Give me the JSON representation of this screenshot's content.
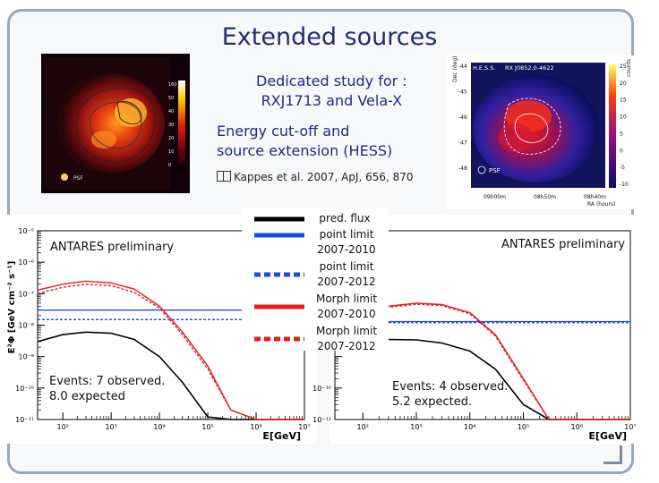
{
  "slide": {
    "title": "Extended sources",
    "study_line1": "Dedicated study for :",
    "study_line2": "RXJ1713 and Vela-X",
    "energy_line1": "Energy cut-off and",
    "energy_line2": "source extension  (HESS)",
    "reference": "Kappes et al. 2007, ApJ, 656, 870"
  },
  "left_map": {
    "colorbar_ticks": [
      "160",
      "50",
      "40",
      "30",
      "20",
      "10",
      "0"
    ],
    "psf_label": "PSF"
  },
  "right_map": {
    "header_left": "H.E.S.S.",
    "header_right": "RX J0852.0-4622",
    "y_label": "Dec (deg)",
    "y_ticks": [
      "-44",
      "-45",
      "-46",
      "-47",
      "-48"
    ],
    "x_ticks": [
      "09h00m",
      "08h50m",
      "08h40m"
    ],
    "x_label": "RA (hours)",
    "colorbar_label": "counts",
    "colorbar_ticks": [
      "25",
      "20",
      "15",
      "10",
      "5",
      "0",
      "-5",
      "-10"
    ],
    "psf_label": "PSF"
  },
  "legend": {
    "items": [
      {
        "label": "pred. flux",
        "color": "#000000",
        "style": "solid"
      },
      {
        "label": "point limit 2007-2010",
        "color": "#1f4fd8",
        "style": "solid"
      },
      {
        "label": "point limit 2007-2012",
        "color": "#1f4fd8",
        "style": "dotted"
      },
      {
        "label": "Morph limit 2007-2010",
        "color": "#e02020",
        "style": "solid"
      },
      {
        "label": "Morph limit 2007-2012",
        "color": "#e02020",
        "style": "dotted"
      }
    ]
  },
  "left_plot": {
    "preliminary": "ANTARES preliminary",
    "events_line1": "Events: 7 observed.",
    "events_line2": "8.0 expected"
  },
  "right_plot": {
    "preliminary": "ANTARES preliminary",
    "events_line1": "Events: 4 observed.",
    "events_line2": "5.2 expected."
  },
  "chart_data": [
    {
      "type": "line",
      "panel": "left",
      "ylabel": "E²Φ [GeV cm⁻² s⁻¹]",
      "xlabel": "E[GeV]",
      "xscale": "log",
      "yscale": "log",
      "xlim": [
        30,
        10000000
      ],
      "ylim": [
        1e-11,
        1e-05
      ],
      "x_ticks": [
        "10²",
        "10³",
        "10⁴",
        "10⁵",
        "10⁶",
        "10⁷"
      ],
      "y_ticks": [
        "10⁻⁵",
        "10⁻⁶",
        "10⁻⁷",
        "10⁻⁸",
        "10⁻⁹",
        "10⁻¹⁰",
        "10⁻¹¹"
      ],
      "grid": false,
      "series": [
        {
          "name": "pred. flux",
          "x": [
            30,
            100,
            300,
            1000,
            3000,
            10000,
            30000,
            100000,
            300000,
            1000000,
            10000000
          ],
          "y": [
            3e-09,
            5e-09,
            6e-09,
            5.5e-09,
            3.5e-09,
            1e-09,
            1.5e-10,
            1.2e-11,
            1e-11,
            1e-11,
            1e-11
          ]
        },
        {
          "name": "point limit 2007-2010",
          "x": [
            30,
            10000000
          ],
          "y": [
            3e-08,
            3e-08
          ]
        },
        {
          "name": "point limit 2007-2012",
          "x": [
            30,
            10000000
          ],
          "y": [
            1.5e-08,
            1.5e-08
          ]
        },
        {
          "name": "Morph limit 2007-2010",
          "x": [
            30,
            100,
            300,
            1000,
            3000,
            10000,
            30000,
            100000,
            300000,
            1000000,
            10000000
          ],
          "y": [
            1.3e-07,
            2e-07,
            2.5e-07,
            2.2e-07,
            1.4e-07,
            4e-08,
            6e-09,
            5e-10,
            2e-11,
            1e-11,
            1e-11
          ]
        },
        {
          "name": "Morph limit 2007-2012",
          "x": [
            30,
            100,
            300,
            1000,
            3000,
            10000,
            30000,
            100000,
            300000,
            1000000,
            10000000
          ],
          "y": [
            1e-07,
            1.6e-07,
            2e-07,
            1.8e-07,
            1.1e-07,
            3.5e-08,
            5e-09,
            4e-10,
            2e-11,
            1e-11,
            1e-11
          ]
        }
      ]
    },
    {
      "type": "line",
      "panel": "right",
      "xlabel": "E[GeV]",
      "xscale": "log",
      "yscale": "log",
      "xlim": [
        30,
        10000000
      ],
      "ylim": [
        1e-11,
        1e-05
      ],
      "x_ticks": [
        "10²",
        "10³",
        "10⁴",
        "10⁵",
        "10⁶",
        "10⁷"
      ],
      "y_ticks": [
        "10⁻¹⁰",
        "10⁻¹¹"
      ],
      "grid": false,
      "series": [
        {
          "name": "pred. flux",
          "x": [
            30,
            100,
            300,
            1000,
            3000,
            10000,
            30000,
            100000,
            300000,
            1000000,
            10000000
          ],
          "y": [
            2e-09,
            3e-09,
            3.5e-09,
            3.4e-09,
            2.7e-09,
            1.5e-09,
            4e-10,
            3e-11,
            1e-11,
            1e-11,
            1e-11
          ]
        },
        {
          "name": "point limit 2007-2010",
          "x": [
            30,
            10000000
          ],
          "y": [
            1.3e-08,
            1.3e-08
          ]
        },
        {
          "name": "point limit 2007-2012",
          "x": [
            30,
            10000000
          ],
          "y": [
            1.2e-08,
            1.2e-08
          ]
        },
        {
          "name": "Morph limit 2007-2010",
          "x": [
            30,
            100,
            300,
            1000,
            3000,
            10000,
            30000,
            100000,
            300000,
            1000000,
            10000000
          ],
          "y": [
            1.3e-08,
            2.5e-08,
            4e-08,
            5e-08,
            4.5e-08,
            2.5e-08,
            5e-09,
            2e-10,
            1e-11,
            1e-11,
            1e-11
          ]
        },
        {
          "name": "Morph limit 2007-2012",
          "x": [
            30,
            100,
            300,
            1000,
            3000,
            10000,
            30000,
            100000,
            300000,
            1000000,
            10000000
          ],
          "y": [
            1.2e-08,
            2.3e-08,
            3.7e-08,
            4.6e-08,
            4.2e-08,
            2.3e-08,
            4.5e-09,
            1.8e-10,
            1e-11,
            1e-11,
            1e-11
          ]
        }
      ]
    }
  ]
}
